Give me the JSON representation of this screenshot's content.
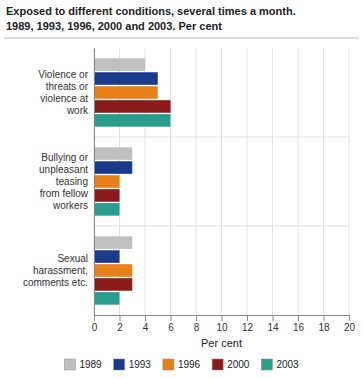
{
  "chart_data": {
    "type": "bar",
    "orientation": "horizontal",
    "title": "Exposed to different conditions, several times a month.",
    "subtitle": "1989, 1993, 1996, 2000 and 2003. Per cent",
    "categories": [
      "Violence or\nthreats or\nviolence at\nwork",
      "Bullying or\nunpleasant\nteasing\nfrom fellow\nworkers",
      "Sexual\nharassment,\ncomments etc."
    ],
    "series": [
      {
        "name": "1989",
        "color": "#c0c0c0",
        "values": [
          4.0,
          3.0,
          3.0
        ]
      },
      {
        "name": "1993",
        "color": "#1a3a8c",
        "values": [
          5.0,
          3.0,
          2.0
        ]
      },
      {
        "name": "1996",
        "color": "#e8801a",
        "values": [
          5.0,
          2.0,
          3.0
        ]
      },
      {
        "name": "2000",
        "color": "#8b1a1a",
        "values": [
          6.0,
          2.0,
          3.0
        ]
      },
      {
        "name": "2003",
        "color": "#2a9d8f",
        "values": [
          6.0,
          2.0,
          2.0
        ]
      }
    ],
    "x_label": "Per cent",
    "xlim": [
      0,
      20
    ],
    "xticks": [
      0,
      2,
      4,
      6,
      8,
      10,
      12,
      14,
      16,
      18,
      20
    ],
    "grid": true,
    "legend": "bottom"
  }
}
